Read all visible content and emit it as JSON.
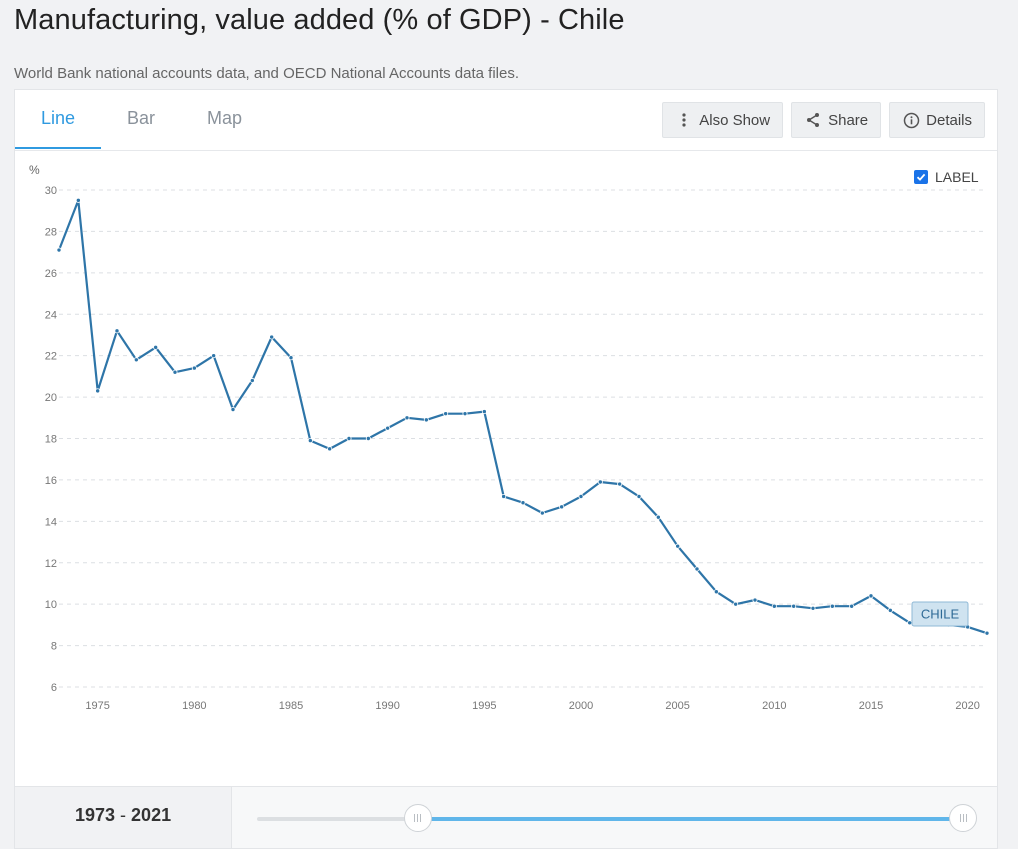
{
  "header": {
    "title": "Manufacturing, value added (% of GDP) - Chile",
    "subtitle": "World Bank national accounts data, and OECD National Accounts data files."
  },
  "tabs": [
    {
      "label": "Line",
      "active": true
    },
    {
      "label": "Bar",
      "active": false
    },
    {
      "label": "Map",
      "active": false
    }
  ],
  "toolbar": {
    "also_show": {
      "label": "Also Show",
      "icon": "vertical-dots-icon"
    },
    "share": {
      "label": "Share",
      "icon": "share-icon"
    },
    "details": {
      "label": "Details",
      "icon": "info-icon"
    }
  },
  "label_toggle": {
    "label": "LABEL",
    "checked": true
  },
  "colors": {
    "accent": "#2f9ae0",
    "line": "#2e75a8",
    "slider": "#60b6ea"
  },
  "range": {
    "start": "1973",
    "sep": " - ",
    "end": "2021"
  },
  "chart_data": {
    "type": "line",
    "ylabel": "%",
    "ylim": [
      6,
      30
    ],
    "yticks": [
      6,
      8,
      10,
      12,
      14,
      16,
      18,
      20,
      22,
      24,
      26,
      28,
      30
    ],
    "xlim": [
      1973,
      2021
    ],
    "xticks": [
      1975,
      1980,
      1985,
      1990,
      1995,
      2000,
      2005,
      2010,
      2015,
      2020
    ],
    "grid": true,
    "series": [
      {
        "name": "CHILE",
        "x": [
          1973,
          1974,
          1975,
          1976,
          1977,
          1978,
          1979,
          1980,
          1981,
          1982,
          1983,
          1984,
          1985,
          1986,
          1987,
          1988,
          1989,
          1990,
          1991,
          1992,
          1993,
          1994,
          1995,
          1996,
          1997,
          1998,
          1999,
          2000,
          2001,
          2002,
          2003,
          2004,
          2005,
          2006,
          2007,
          2008,
          2009,
          2010,
          2011,
          2012,
          2013,
          2014,
          2015,
          2016,
          2017,
          2018,
          2019,
          2020,
          2021
        ],
        "values": [
          27.1,
          29.5,
          20.3,
          23.2,
          21.8,
          22.4,
          21.2,
          21.4,
          22.0,
          19.4,
          20.8,
          22.9,
          21.9,
          17.9,
          17.5,
          18.0,
          18.0,
          18.5,
          19.0,
          18.9,
          19.2,
          19.2,
          19.3,
          15.2,
          14.9,
          14.4,
          14.7,
          15.2,
          15.9,
          15.8,
          15.2,
          14.2,
          12.8,
          11.7,
          10.6,
          10.0,
          10.2,
          9.9,
          9.9,
          9.8,
          9.9,
          9.9,
          10.4,
          9.7,
          9.1,
          9.6,
          9.0,
          8.9,
          8.6
        ]
      }
    ]
  }
}
